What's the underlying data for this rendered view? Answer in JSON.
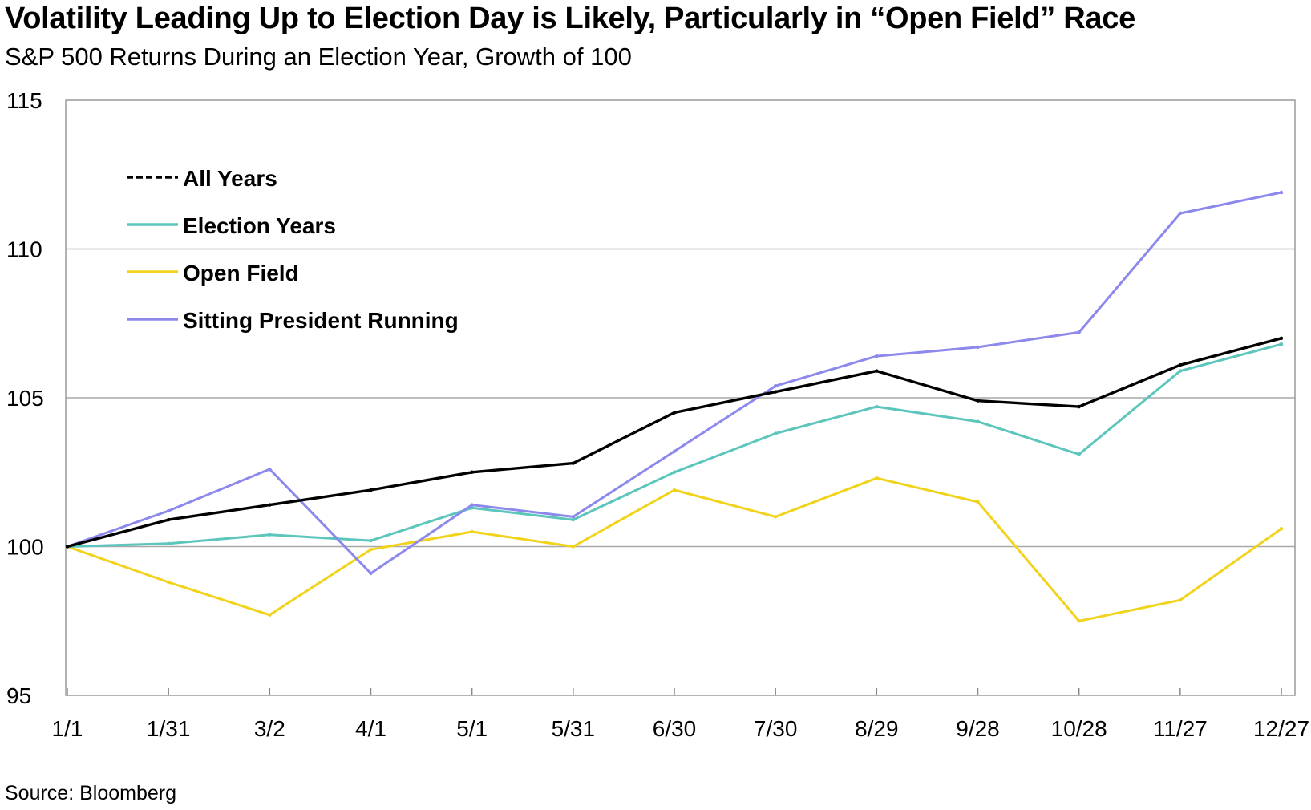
{
  "title": "Volatility Leading Up to Election Day is Likely, Particularly in “Open Field” Race",
  "subtitle": "S&P 500 Returns During an Election Year, Growth of 100",
  "source": "Source: Bloomberg",
  "chart_data": {
    "type": "line",
    "x": [
      "1/1",
      "1/31",
      "3/2",
      "4/1",
      "5/1",
      "5/31",
      "6/30",
      "7/30",
      "8/29",
      "9/28",
      "10/28",
      "11/27",
      "12/27"
    ],
    "x_tick_labels": [
      "1/1",
      "1/31",
      "3/2",
      "4/1",
      "5/1",
      "5/31",
      "6/30",
      "7/30",
      "8/29",
      "9/28",
      "10/28",
      "11/27",
      "12/27"
    ],
    "y_ticks": [
      95,
      100,
      105,
      110,
      115
    ],
    "y_tick_labels": [
      "95",
      "100",
      "105",
      "110",
      "115"
    ],
    "ylim": [
      95,
      115
    ],
    "grid": "horizontal",
    "legend_position": "top-left",
    "series": [
      {
        "name": "All Years",
        "color": "#000000",
        "values": [
          100.0,
          100.9,
          101.4,
          101.9,
          102.5,
          102.8,
          104.5,
          105.2,
          105.9,
          104.9,
          104.7,
          106.1,
          107.0
        ]
      },
      {
        "name": "Election Years",
        "color": "#5cc5bc",
        "values": [
          100.0,
          100.1,
          100.4,
          100.2,
          101.3,
          100.9,
          102.5,
          103.8,
          104.7,
          104.2,
          103.1,
          105.9,
          106.8
        ]
      },
      {
        "name": "Open Field",
        "color": "#f2d31b",
        "values": [
          100.0,
          98.8,
          97.7,
          99.9,
          100.5,
          100.0,
          101.9,
          101.0,
          102.3,
          101.5,
          97.5,
          98.2,
          100.6
        ]
      },
      {
        "name": "Sitting President Running",
        "color": "#8c88ec",
        "values": [
          100.0,
          101.2,
          102.6,
          99.1,
          101.4,
          101.0,
          103.2,
          105.4,
          106.4,
          106.7,
          107.2,
          111.2,
          111.9
        ]
      }
    ]
  }
}
